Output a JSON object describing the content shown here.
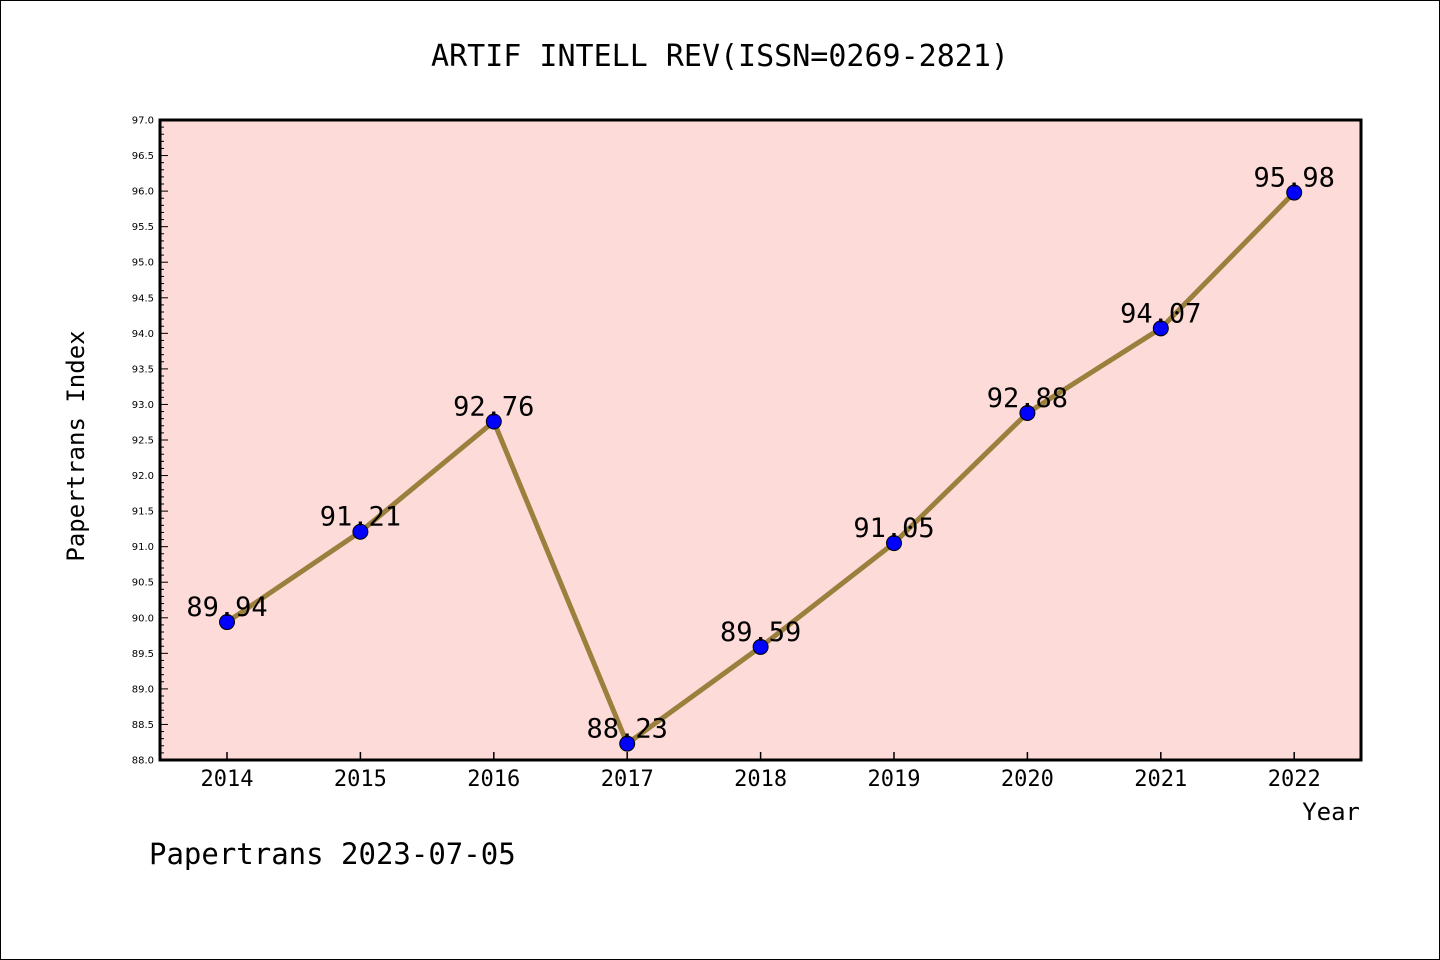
{
  "chart_data": {
    "type": "line",
    "title": "ARTIF INTELL REV(ISSN=0269-2821)",
    "xlabel": "Year",
    "ylabel": "Papertrans Index",
    "categories": [
      "2014",
      "2015",
      "2016",
      "2017",
      "2018",
      "2019",
      "2020",
      "2021",
      "2022"
    ],
    "values": [
      89.94,
      91.21,
      92.76,
      88.23,
      89.59,
      91.05,
      92.88,
      94.07,
      95.98
    ],
    "data_labels": [
      "89.94",
      "91.21",
      "92.76",
      "88.23",
      "89.59",
      "91.05",
      "92.88",
      "94.07",
      "95.98"
    ],
    "ylim": [
      88.0,
      97.0
    ],
    "y_ticks": [
      "88.0",
      "88.5",
      "89.0",
      "89.5",
      "90.0",
      "90.5",
      "91.0",
      "91.5",
      "92.0",
      "92.5",
      "93.0",
      "93.5",
      "94.0",
      "94.5",
      "95.0",
      "95.5",
      "96.0",
      "96.5",
      "97.0"
    ],
    "grid": false,
    "legend": "none",
    "footer": "Papertrans 2023-07-05",
    "colors": {
      "plot_background": "#fddbd9",
      "line": "#9b7f3c",
      "marker": "#0000ff",
      "frame": "#000000"
    }
  }
}
